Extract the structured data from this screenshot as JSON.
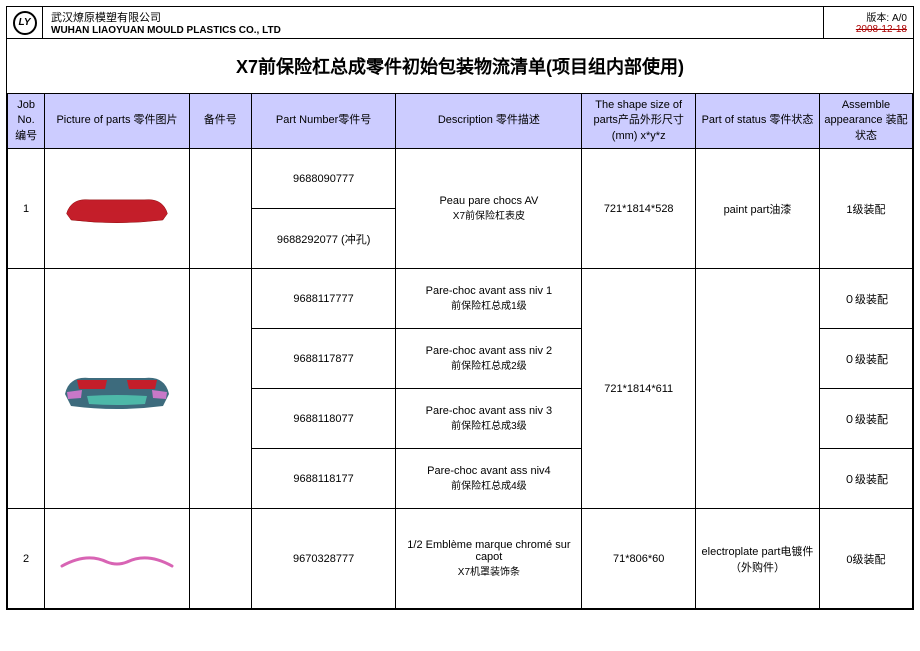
{
  "header": {
    "company_cn": "武汉燎原模塑有限公司",
    "company_en": "WUHAN LIAOYUAN MOULD PLASTICS CO., LTD",
    "logo_text": "LY",
    "version_label": "版本: A/0",
    "version_date": "2008-12-18"
  },
  "title": "X7前保险杠总成零件初始包装物流清单(项目组内部使用)",
  "columns": {
    "job": "Job No.\n编号",
    "picture": "Picture of parts 零件图片",
    "spare": "备件号",
    "part_number": "Part Number零件号",
    "description": "Description 零件描述",
    "size": "The shape size of parts产品外形尺寸 (mm)\nx*y*z",
    "status": "Part of status    零件状态",
    "assemble": "Assemble appearance\n装配状态"
  },
  "rows": [
    {
      "job": "1",
      "pic": "bumper_red",
      "sub": [
        {
          "pn": "9688090777",
          "desc_en": "Peau pare chocs AV",
          "desc_cn": "X7前保险杠表皮",
          "asm": "1级装配",
          "shared_desc": true
        },
        {
          "pn": "9688292077 (冲孔)",
          "desc_en": "",
          "desc_cn": "",
          "asm": ""
        }
      ],
      "size": "721*1814*528",
      "status": "paint part油漆"
    },
    {
      "job": "",
      "pic": "bumper_multi",
      "sub": [
        {
          "pn": "9688117777",
          "desc_en": "Pare-choc avant ass niv 1",
          "desc_cn": "前保险杠总成1级",
          "asm": "０级装配"
        },
        {
          "pn": "9688117877",
          "desc_en": "Pare-choc avant ass niv 2",
          "desc_cn": "前保险杠总成2级",
          "asm": "０级装配"
        },
        {
          "pn": "9688118077",
          "desc_en": "Pare-choc avant ass niv 3",
          "desc_cn": "前保险杠总成3级",
          "asm": "０级装配"
        },
        {
          "pn": "9688118177",
          "desc_en": "Pare-choc avant ass niv4",
          "desc_cn": "前保险杠总成4级",
          "asm": "０级装配"
        }
      ],
      "size": "721*1814*611",
      "status": ""
    },
    {
      "job": "2",
      "pic": "trim",
      "sub": [
        {
          "pn": "9670328777",
          "desc_en": "1/2 Emblème marque chromé sur capot",
          "desc_cn": "X7机罩装饰条",
          "asm": "0级装配"
        }
      ],
      "size": "71*806*60",
      "status": "electroplate part电镀件（外购件）"
    }
  ],
  "colors": {
    "header_bg": "#ccccff",
    "bumper_red": "#c41e2a",
    "bumper_body": "#3d6b7d",
    "bumper_accent1": "#c41e2a",
    "bumper_accent2": "#4db8a8",
    "bumper_accent3": "#c878c8",
    "trim_color": "#d864b4"
  }
}
